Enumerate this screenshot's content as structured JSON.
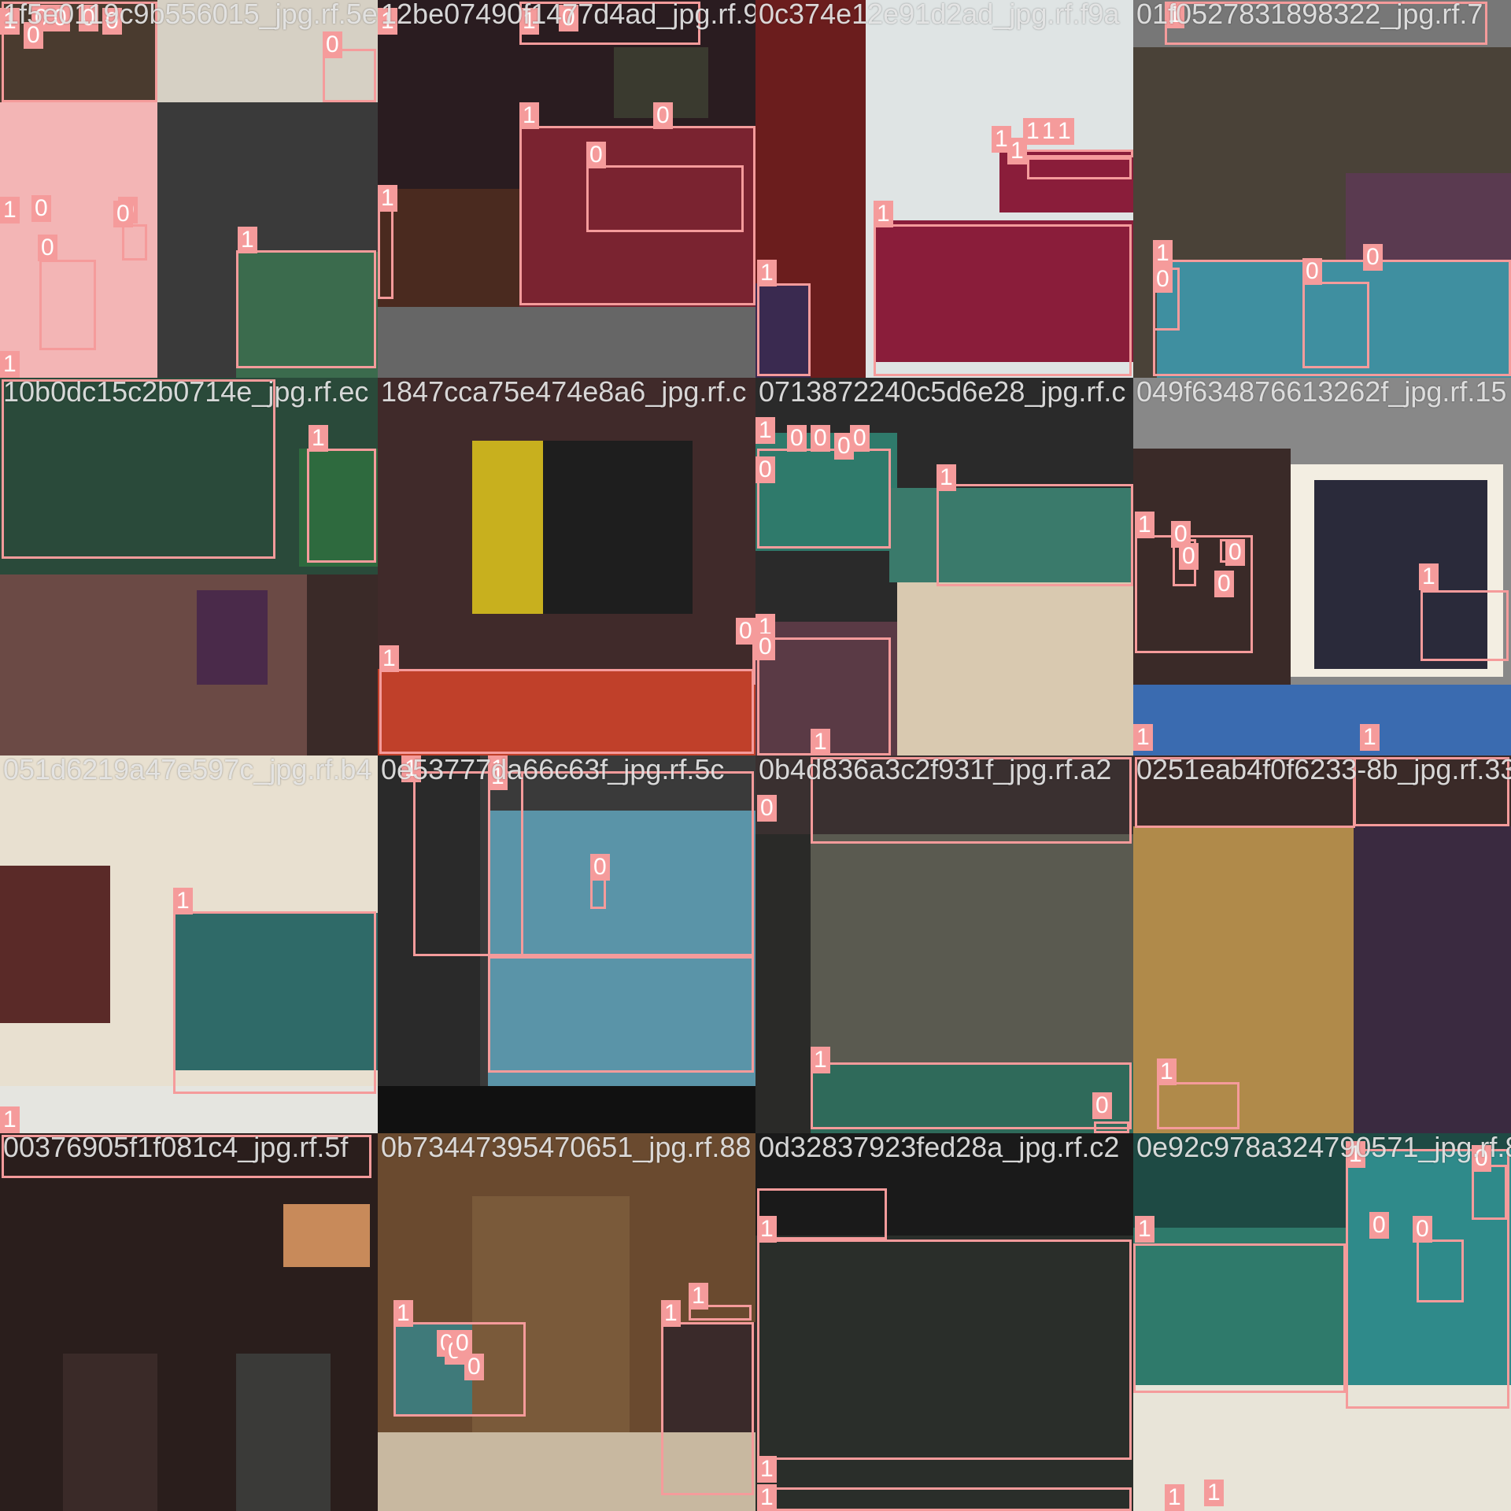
{
  "mosaic": {
    "accent_color": "#f59b9b",
    "class_labels": [
      "0",
      "1"
    ],
    "tiles": [
      {
        "title": "1f5e0119c9b556015_jpg.rf.5e",
        "labels": [
          "1",
          "0",
          "0",
          "0",
          "0",
          "0",
          "0",
          "1",
          "1",
          "0",
          "0",
          "0",
          "1",
          "0"
        ]
      },
      {
        "title": "12be07490f1477d4ad_jpg.rf.9c",
        "labels": [
          "1",
          "1",
          "0",
          "1",
          "0",
          "1",
          "0"
        ]
      },
      {
        "title": "0c374e12e91d2ad_jpg.rf.f9a",
        "labels": [
          "1",
          "1",
          "1",
          "1",
          "1",
          "1",
          "1"
        ]
      },
      {
        "title": "01f0527831898322_jpg.rf.7",
        "labels": [
          "1",
          "1",
          "0",
          "0",
          "0"
        ]
      },
      {
        "title": "10b0dc15c2b0714e_jpg.rf.ec",
        "labels": [
          "1"
        ]
      },
      {
        "title": "1847cca75e474e8a6_jpg.rf.c",
        "labels": [
          "1",
          "1",
          "0"
        ]
      },
      {
        "title": "0713872240c5d6e28_jpg.rf.c",
        "labels": [
          "1",
          "0",
          "0",
          "0",
          "0",
          "0",
          "1",
          "1",
          "1",
          "0"
        ]
      },
      {
        "title": "049f634876613262f_jpg.rf.15",
        "labels": [
          "1",
          "0",
          "0",
          "0",
          "0",
          "1",
          "1",
          "1"
        ]
      },
      {
        "title": "051d6219a47e597c_jpg.rf.b4",
        "labels": [
          "1",
          "1"
        ]
      },
      {
        "title": "0e53777da66c63f_jpg.rf.5c",
        "labels": [
          "1",
          "1",
          "1",
          "0"
        ]
      },
      {
        "title": "0b4d836a3c2f931f_jpg.rf.a2",
        "labels": [
          "0",
          "1",
          "0"
        ]
      },
      {
        "title": "0251eab4f0f6233-8b_jpg.rf.33",
        "labels": [
          "1"
        ]
      },
      {
        "title": "00376905f1f081c4_jpg.rf.5f",
        "labels": []
      },
      {
        "title": "0b73447395470651_jpg.rf.88",
        "labels": [
          "1",
          "0",
          "0",
          "0",
          "0",
          "1",
          "1"
        ]
      },
      {
        "title": "0d32837923fed28a_jpg.rf.c2",
        "labels": [
          "1",
          "1",
          "1"
        ]
      },
      {
        "title": "0e92c978a324790571_jpg.rf.80",
        "labels": [
          "1",
          "1",
          "0",
          "0",
          "0",
          "1",
          "1"
        ]
      }
    ]
  }
}
